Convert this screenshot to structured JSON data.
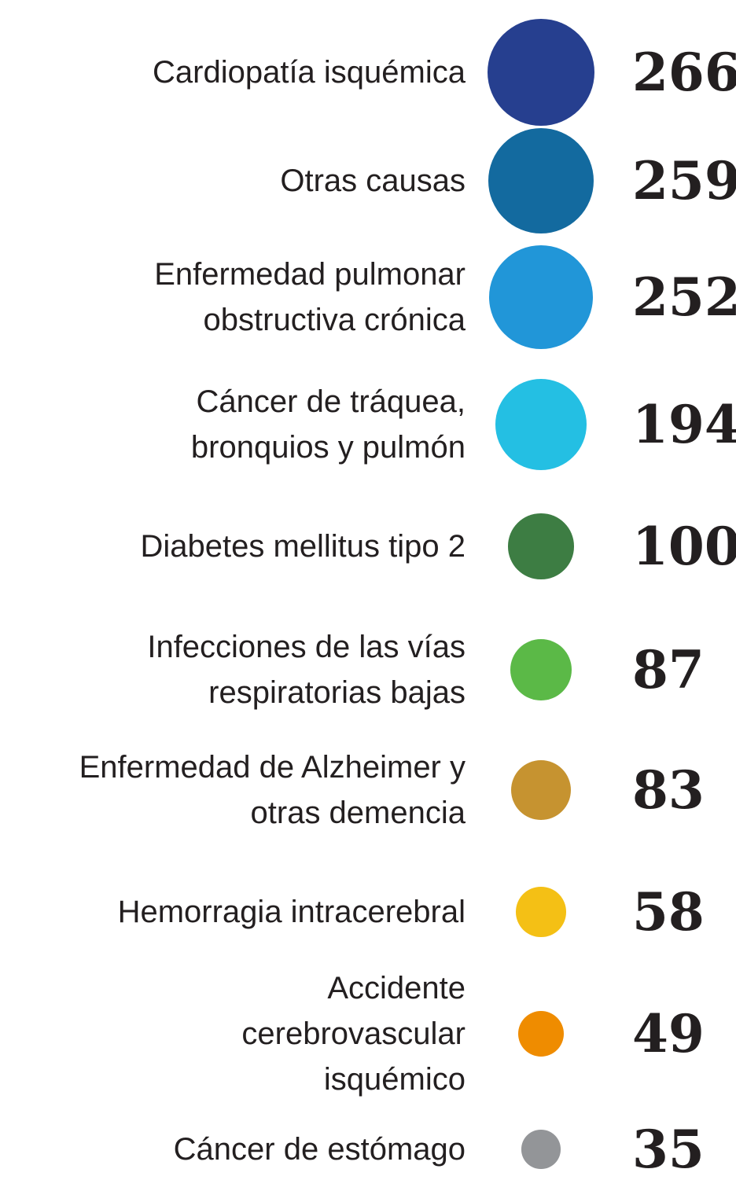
{
  "chart_data": {
    "type": "bubble",
    "categories": [
      "Cardiopatía isquémica",
      "Otras causas",
      "Enfermedad pulmonar\nobstructiva crónica",
      "Cáncer de tráquea,\nbronquios y pulmón",
      "Diabetes mellitus tipo 2",
      "Infecciones de las vías\nrespiratorias bajas",
      "Enfermedad de Alzheimer y\notras demencia",
      "Hemorragia intracerebral",
      "Accidente\ncerebrovascular\nisquémico",
      "Cáncer de estómago"
    ],
    "values": [
      266,
      259,
      252,
      194,
      100,
      87,
      83,
      58,
      49,
      35
    ],
    "colors": [
      "#263f8f",
      "#136a9f",
      "#2196d8",
      "#24bfe3",
      "#3d7d43",
      "#5bb947",
      "#c69330",
      "#f4c015",
      "#ef8c00",
      "#939598"
    ]
  }
}
